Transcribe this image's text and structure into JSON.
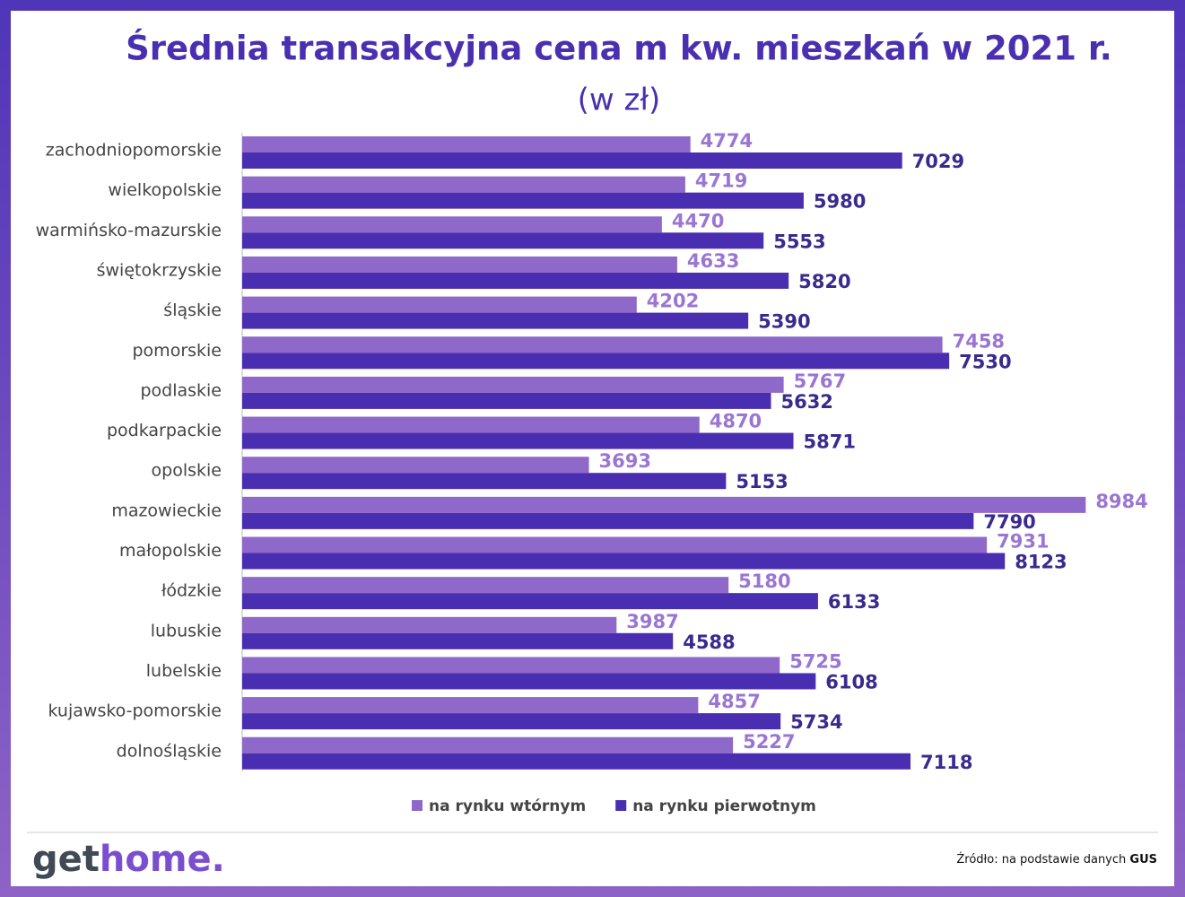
{
  "chart_data": {
    "type": "hbar",
    "title": "Średnia transakcyjna cena m kw. mieszkań w 2021 r.",
    "subtitle": "(w zł)",
    "categories": [
      "zachodniopomorskie",
      "wielkopolskie",
      "warmińsko-mazurskie",
      "świętokrzyskie",
      "śląskie",
      "pomorskie",
      "podlaskie",
      "podkarpackie",
      "opolskie",
      "mazowieckie",
      "małopolskie",
      "łódzkie",
      "lubuskie",
      "lubelskie",
      "kujawsko-pomorskie",
      "dolnośląskie"
    ],
    "series": [
      {
        "name": "na rynku wtórnym",
        "color": "#8e69c9",
        "label_color": "#9a76d2",
        "values": [
          4774,
          4719,
          4470,
          4633,
          4202,
          7458,
          5767,
          4870,
          3693,
          8984,
          7931,
          5180,
          3987,
          5725,
          4857,
          5227
        ]
      },
      {
        "name": "na rynku pierwotnym",
        "color": "#4a2eb2",
        "label_color": "#3a2a8e",
        "values": [
          7029,
          5980,
          5553,
          5820,
          5390,
          7530,
          5632,
          5871,
          5153,
          7790,
          8123,
          6133,
          4588,
          6108,
          5734,
          7118
        ]
      }
    ],
    "xlim": [
      0,
      9000
    ],
    "legend": "bottom"
  },
  "footer": {
    "logo": [
      "get",
      "home."
    ],
    "source": "Źródło: na podstawie danych",
    "source_bold": "GUS"
  }
}
